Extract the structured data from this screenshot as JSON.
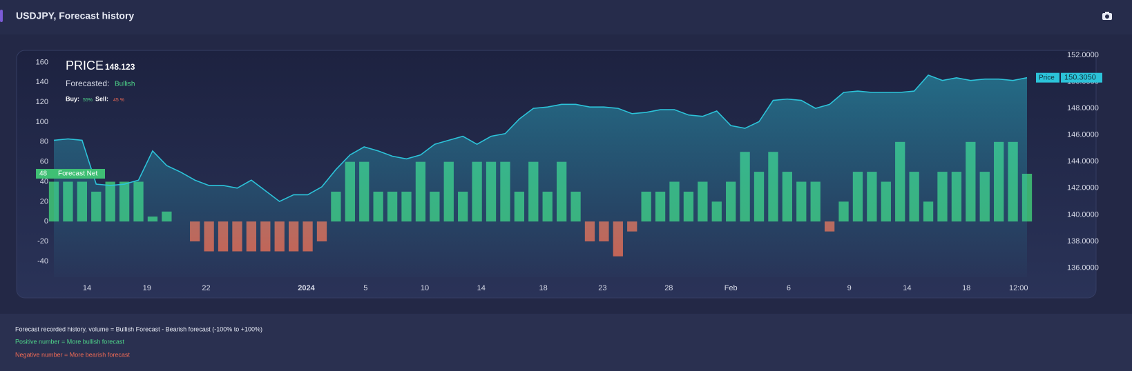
{
  "header": {
    "title": "USDJPY, Forecast history"
  },
  "chart_data": {
    "type": "bar-line",
    "overlay": {
      "price_label": "PRICE",
      "price": 148.123,
      "forecasted_label": "Forecasted:",
      "forecasted": "Bullish",
      "buy_label": "Buy:",
      "buy": "55%",
      "sell_label": "Sell:",
      "sell": "45 %"
    },
    "x": [
      0,
      1,
      2,
      3,
      4,
      5,
      6,
      7,
      8,
      9,
      10,
      11,
      12,
      13,
      14,
      15,
      16,
      17,
      18,
      19,
      20,
      21,
      22,
      23,
      24,
      25,
      26,
      27,
      28,
      29,
      30,
      31,
      32,
      33,
      34,
      35,
      36,
      37,
      38,
      39,
      40,
      41,
      42,
      43,
      44,
      45,
      46,
      47,
      48,
      49,
      50,
      51,
      52,
      53,
      54,
      55,
      56,
      57,
      58,
      59,
      60,
      61,
      62,
      63,
      64,
      65,
      66,
      67,
      68,
      69
    ],
    "xlim": [
      0,
      69
    ],
    "xticks": [
      {
        "value": 2.35,
        "label": "14"
      },
      {
        "value": 6.6,
        "label": "19"
      },
      {
        "value": 10.8,
        "label": "22"
      },
      {
        "value": 17.9,
        "label": "2024"
      },
      {
        "value": 22.1,
        "label": "5"
      },
      {
        "value": 26.3,
        "label": "10"
      },
      {
        "value": 30.3,
        "label": "14"
      },
      {
        "value": 34.7,
        "label": "18"
      },
      {
        "value": 38.9,
        "label": "23"
      },
      {
        "value": 43.6,
        "label": "28"
      },
      {
        "value": 48,
        "label": "Feb"
      },
      {
        "value": 52.1,
        "label": "6"
      },
      {
        "value": 56.4,
        "label": "9"
      },
      {
        "value": 60.5,
        "label": "14"
      },
      {
        "value": 64.7,
        "label": "18"
      },
      {
        "value": 68.4,
        "label": "12:00"
      }
    ],
    "ylim": [
      -56,
      167.2
    ],
    "yticks": [
      -40,
      -20,
      0,
      20,
      40,
      60,
      80,
      100,
      120,
      140,
      160
    ],
    "y2lim": [
      135.3,
      152
    ],
    "y2ticks": [
      {
        "value": 136,
        "label": "136.0000"
      },
      {
        "value": 138,
        "label": "138.0000"
      },
      {
        "value": 140,
        "label": "140.0000"
      },
      {
        "value": 142,
        "label": "142.0000"
      },
      {
        "value": 144,
        "label": "144.0000"
      },
      {
        "value": 146,
        "label": "146.0000"
      },
      {
        "value": 148,
        "label": "148.0000"
      },
      {
        "value": 150,
        "label": "150.0000"
      },
      {
        "value": 152,
        "label": "152.0000"
      }
    ],
    "series": [
      {
        "name": "Forecast Net",
        "type": "bar",
        "positive_color": "#3fbf74",
        "negative_color": "#e0644e",
        "values": [
          40,
          40,
          40,
          30,
          40,
          40,
          40,
          5,
          10,
          0,
          -20,
          -30,
          -30,
          -30,
          -30,
          -30,
          -30,
          -30,
          -30,
          -20,
          30,
          60,
          60,
          30,
          30,
          30,
          60,
          30,
          60,
          30,
          60,
          60,
          60,
          30,
          60,
          30,
          60,
          30,
          -20,
          -20,
          -35,
          -10,
          30,
          30,
          40,
          30,
          40,
          20,
          40,
          70,
          50,
          70,
          50,
          40,
          40,
          -10,
          20,
          50,
          50,
          40,
          80,
          50,
          20,
          50,
          50,
          80,
          50,
          80,
          80,
          48
        ]
      },
      {
        "name": "Price",
        "type": "line",
        "axis": "y2",
        "color": "#2cc3d9",
        "values": [
          145.6,
          145.7,
          145.6,
          142.3,
          142.2,
          142.3,
          142.6,
          144.8,
          143.7,
          143.2,
          142.6,
          142.2,
          142.2,
          142.0,
          142.6,
          141.8,
          141.0,
          141.5,
          141.5,
          142.1,
          143.4,
          144.5,
          145.1,
          144.8,
          144.4,
          144.2,
          144.5,
          145.3,
          145.6,
          145.9,
          145.3,
          145.9,
          146.1,
          147.2,
          148.0,
          148.1,
          148.3,
          148.3,
          148.1,
          148.1,
          148.0,
          147.6,
          147.7,
          147.9,
          147.9,
          147.5,
          147.4,
          147.8,
          146.7,
          146.5,
          147.0,
          148.6,
          148.7,
          148.6,
          148.0,
          148.3,
          149.2,
          149.3,
          149.2,
          149.2,
          149.2,
          149.3,
          150.5,
          150.1,
          150.3,
          150.1,
          150.2,
          150.2,
          150.1,
          150.305
        ]
      }
    ],
    "current_forecast": 48,
    "current_price": {
      "value": 150.305,
      "label": "150.3050"
    }
  },
  "footer": {
    "lines": [
      "Forecast recorded history, volume = Bullish Forecast - Bearish forecast (-100% to +100%)",
      "Positive number = More bullish forecast",
      "Negative number = More bearish forecast"
    ]
  }
}
